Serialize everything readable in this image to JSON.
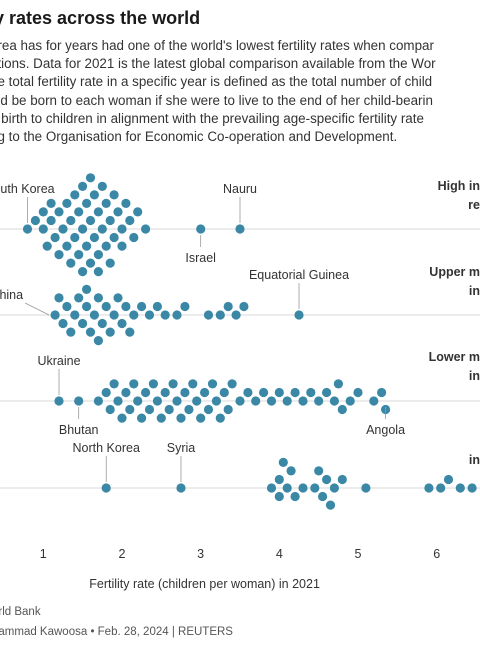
{
  "header": {
    "title": "y rates across the world"
  },
  "intro_lines": [
    "orea has for years had one of the world's lowest fertility rates when compar",
    "ations. Data for 2021 is the latest global comparison available from the Wor",
    "he total fertility rate in a specific year is defined as the total number of child",
    "uld be born to each woman if she were to live to the end of her child-bearin",
    "e birth to children in alignment with the prevailing age-specific fertility rate",
    "ng to the Organisation for Economic Co-operation and Development."
  ],
  "colors": {
    "dot": "#3b88a6",
    "grid": "#d9d9d9",
    "text": "#333333"
  },
  "chart_data": {
    "type": "scatter",
    "subtype": "beeswarm",
    "xlabel": "Fertility rate (children per woman) in 2021",
    "xlim": [
      0.45,
      6.55
    ],
    "xticks": [
      1,
      2,
      3,
      4,
      5,
      6
    ],
    "xtick_labels": [
      "1",
      "2",
      "3",
      "4",
      "5",
      "6"
    ],
    "grid": "horizontal baselines per group",
    "groups": [
      {
        "label_lines": [
          "High in",
          "re"
        ],
        "values": [
          0.8,
          0.9,
          1.0,
          1.0,
          1.05,
          1.1,
          1.1,
          1.15,
          1.2,
          1.2,
          1.25,
          1.3,
          1.3,
          1.35,
          1.35,
          1.4,
          1.4,
          1.45,
          1.45,
          1.5,
          1.5,
          1.5,
          1.55,
          1.55,
          1.6,
          1.6,
          1.6,
          1.65,
          1.65,
          1.7,
          1.7,
          1.7,
          1.75,
          1.75,
          1.8,
          1.8,
          1.85,
          1.85,
          1.9,
          1.9,
          1.95,
          2.0,
          2.0,
          2.05,
          2.1,
          2.15,
          2.2,
          2.3,
          3.0,
          3.5
        ],
        "annotations": [
          {
            "text": "uth Korea",
            "value": 0.8,
            "position": "above"
          },
          {
            "text": "Israel",
            "value": 3.0,
            "position": "below"
          },
          {
            "text": "Nauru",
            "value": 3.5,
            "position": "above"
          }
        ]
      },
      {
        "label_lines": [
          "Upper m",
          "in"
        ],
        "values": [
          1.15,
          1.2,
          1.25,
          1.3,
          1.35,
          1.4,
          1.45,
          1.5,
          1.55,
          1.55,
          1.6,
          1.65,
          1.7,
          1.7,
          1.75,
          1.8,
          1.85,
          1.9,
          1.95,
          2.0,
          2.05,
          2.1,
          2.15,
          2.25,
          2.35,
          2.45,
          2.55,
          2.7,
          2.8,
          3.1,
          3.25,
          3.35,
          3.45,
          3.55,
          4.25
        ],
        "annotations": [
          {
            "text": "China",
            "value": 1.15,
            "position": "left"
          },
          {
            "text": "Equatorial Guinea",
            "value": 4.25,
            "position": "above"
          }
        ]
      },
      {
        "label_lines": [
          "Lower m",
          "in"
        ],
        "values": [
          1.2,
          1.45,
          1.7,
          1.8,
          1.85,
          1.9,
          1.95,
          2.0,
          2.05,
          2.1,
          2.15,
          2.2,
          2.25,
          2.3,
          2.35,
          2.4,
          2.45,
          2.5,
          2.55,
          2.6,
          2.65,
          2.7,
          2.75,
          2.8,
          2.85,
          2.9,
          2.95,
          3.0,
          3.05,
          3.1,
          3.15,
          3.2,
          3.25,
          3.3,
          3.35,
          3.4,
          3.5,
          3.6,
          3.7,
          3.8,
          3.9,
          4.0,
          4.1,
          4.2,
          4.3,
          4.4,
          4.5,
          4.6,
          4.7,
          4.75,
          4.8,
          4.9,
          5.0,
          5.2,
          5.3,
          5.35
        ],
        "annotations": [
          {
            "text": "Ukraine",
            "value": 1.2,
            "position": "above"
          },
          {
            "text": "Bhutan",
            "value": 1.45,
            "position": "below"
          },
          {
            "text": "Angola",
            "value": 5.35,
            "position": "below"
          }
        ]
      },
      {
        "label_lines": [
          "in"
        ],
        "values": [
          1.8,
          2.75,
          3.9,
          4.0,
          4.0,
          4.05,
          4.1,
          4.15,
          4.2,
          4.3,
          4.45,
          4.5,
          4.55,
          4.6,
          4.65,
          4.7,
          4.8,
          5.1,
          5.9,
          6.05,
          6.15,
          6.3,
          6.45
        ],
        "annotations": [
          {
            "text": "North Korea",
            "value": 1.8,
            "position": "above"
          },
          {
            "text": "Syria",
            "value": 2.75,
            "position": "above"
          }
        ]
      }
    ]
  },
  "footer": {
    "source": "orld Bank",
    "credit": "hammad Kawoosa • Feb. 28, 2024 | REUTERS"
  }
}
